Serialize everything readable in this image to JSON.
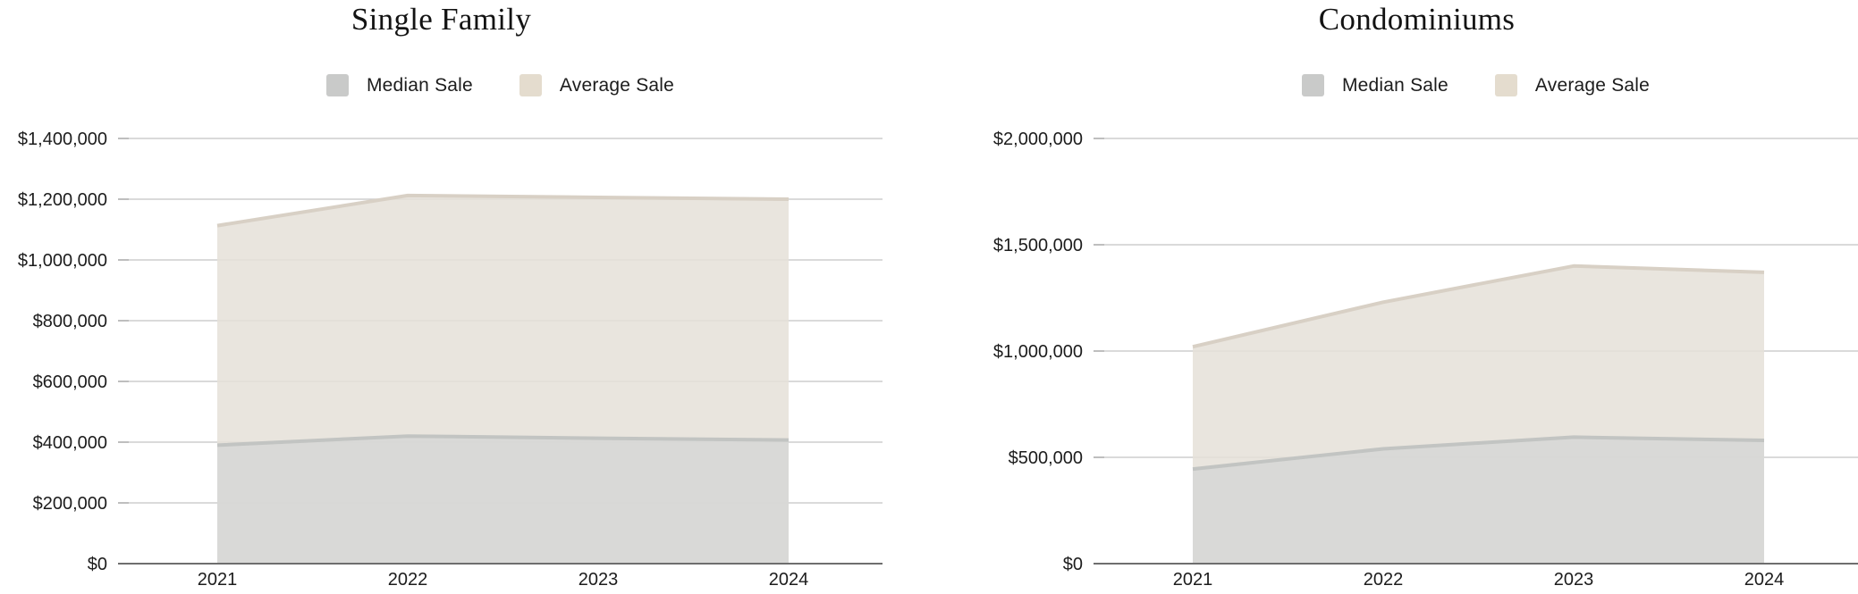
{
  "page": {
    "background": "#ffffff"
  },
  "colors": {
    "text": "#1c1c1c",
    "title_text": "#131313",
    "gridline": "#cdcdcd",
    "grid_tick": "#b0b0b0",
    "axis_line": "#6e6e6e"
  },
  "chart_data": [
    {
      "type": "area",
      "title": "Single Family",
      "x": [
        "2021",
        "2022",
        "2023",
        "2024"
      ],
      "series": [
        {
          "name": "Median Sale",
          "values": [
            390000,
            420000,
            413000,
            407000
          ],
          "fill": "#d6d7d6",
          "fill_opacity": 0.85,
          "stroke": "#c2c4c2",
          "legend_swatch": "#c9cac9"
        },
        {
          "name": "Average Sale",
          "values": [
            1113000,
            1212000,
            1206000,
            1200000
          ],
          "fill": "#e5e0d8",
          "fill_opacity": 0.85,
          "stroke": "#d8d0c5",
          "legend_swatch": "#e4dcce"
        }
      ],
      "ylim": [
        0,
        1400000
      ],
      "y_tick_step": 200000,
      "y_tick_labels": [
        "$0",
        "$200,000",
        "$400,000",
        "$600,000",
        "$800,000",
        "$1,000,000",
        "$1,200,000",
        "$1,400,000"
      ],
      "xlabel": "",
      "ylabel": "",
      "grid": true,
      "legend_position": "top"
    },
    {
      "type": "area",
      "title": "Condominiums",
      "x": [
        "2021",
        "2022",
        "2023",
        "2024"
      ],
      "series": [
        {
          "name": "Median Sale",
          "values": [
            445000,
            540000,
            595000,
            580000
          ],
          "fill": "#d6d7d6",
          "fill_opacity": 0.85,
          "stroke": "#c2c4c2",
          "legend_swatch": "#c9cac9"
        },
        {
          "name": "Average Sale",
          "values": [
            1020000,
            1230000,
            1400000,
            1370000
          ],
          "fill": "#e5e0d8",
          "fill_opacity": 0.85,
          "stroke": "#d8d0c5",
          "legend_swatch": "#e4dcce"
        }
      ],
      "ylim": [
        0,
        2000000
      ],
      "y_tick_step": 500000,
      "y_tick_labels": [
        "$0",
        "$500,000",
        "$1,000,000",
        "$1,500,000",
        "$2,000,000"
      ],
      "xlabel": "",
      "ylabel": "",
      "grid": true,
      "legend_position": "top"
    }
  ]
}
